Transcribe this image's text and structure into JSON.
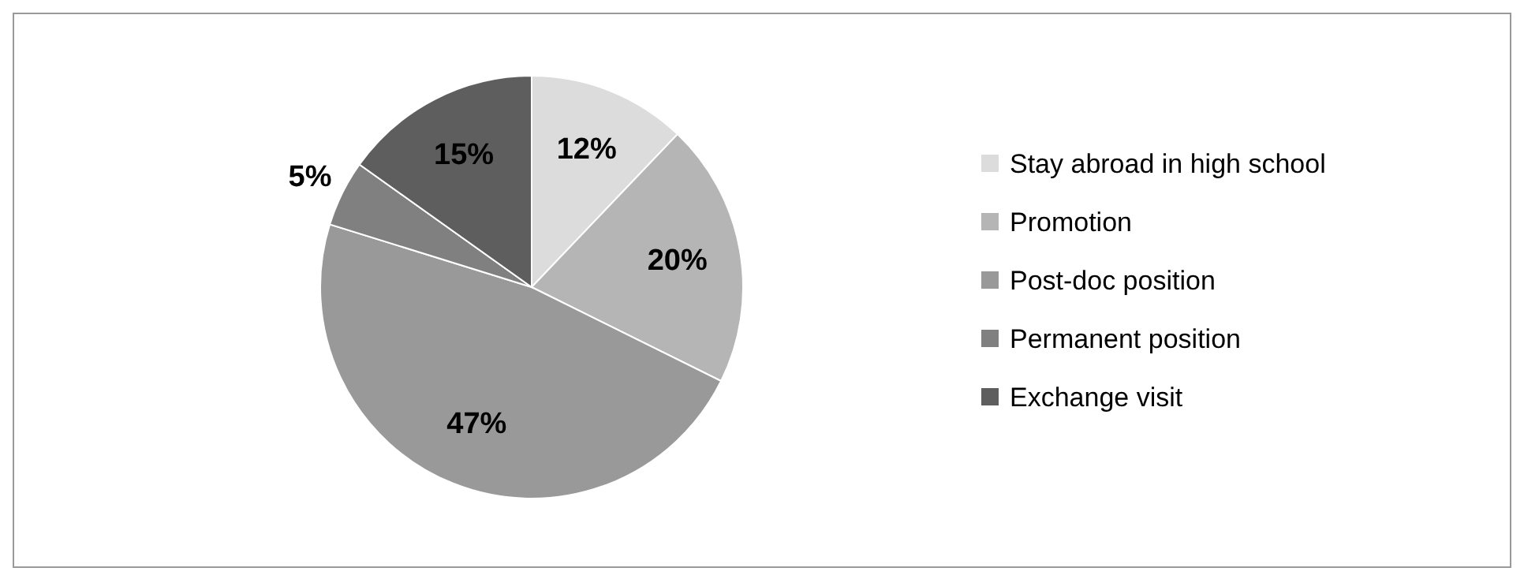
{
  "chart_data": {
    "type": "pie",
    "categories": [
      "Stay abroad in high school",
      "Promotion",
      "Post-doc position",
      "Permanent position",
      "Exchange visit"
    ],
    "values": [
      12,
      20,
      47,
      5,
      15
    ],
    "colors": [
      "#dcdcdc",
      "#b5b5b5",
      "#999999",
      "#808080",
      "#5e5e5e"
    ],
    "value_labels": [
      "12%",
      "20%",
      "47%",
      "5%",
      "15%"
    ],
    "legend": "right"
  }
}
